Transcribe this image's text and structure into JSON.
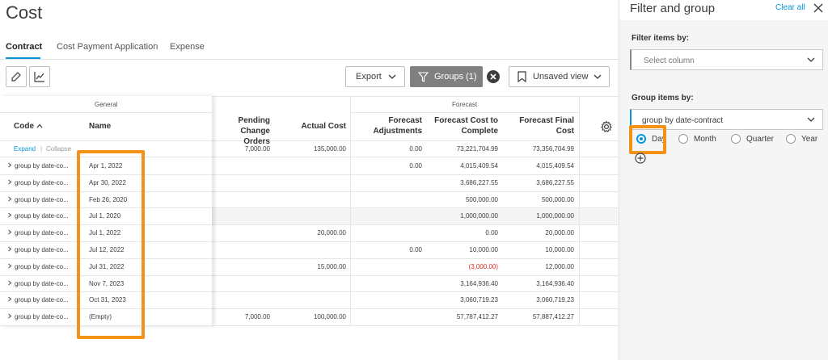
{
  "page": {
    "title": "Cost"
  },
  "tabs": [
    {
      "label": "Contract",
      "active": true
    },
    {
      "label": "Cost Payment Application",
      "active": false
    },
    {
      "label": "Expense",
      "active": false
    }
  ],
  "toolbar": {
    "edit_icon": "pencil-icon",
    "chart_icon": "line-chart-icon",
    "export_label": "Export",
    "groups_label": "Groups (1)",
    "view_label": "Unsaved view"
  },
  "grid": {
    "group_headers": {
      "general": "General",
      "forecast": "Forecast"
    },
    "columns": {
      "code": "Code",
      "name": "Name",
      "pending_change_orders": [
        "Pending Change",
        "Orders"
      ],
      "actual_cost": "Actual Cost",
      "forecast_adjustments": [
        "Forecast",
        "Adjustments"
      ],
      "forecast_cost_to_complete": [
        "Forecast Cost to",
        "Complete"
      ],
      "forecast_final_cost": [
        "Forecast Final",
        "Cost"
      ]
    },
    "expand_label": "Expand",
    "collapse_label": "Collapse",
    "totals": {
      "pending_change_orders": "7,000.00",
      "actual_cost": "135,000.00",
      "forecast_adjustments": "0.00",
      "forecast_cost_to_complete": "73,221,704.99",
      "forecast_final_cost": "73,356,704.99"
    },
    "rows": [
      {
        "code": "group by date-co...",
        "name": "Apr 1, 2022",
        "pending": "",
        "actual": "",
        "adjust": "0.00",
        "ctc": "4,015,409.54",
        "final": "4,015,409.54"
      },
      {
        "code": "group by date-co...",
        "name": "Apr 30, 2022",
        "pending": "",
        "actual": "",
        "adjust": "",
        "ctc": "3,686,227.55",
        "final": "3,686,227.55"
      },
      {
        "code": "group by date-co...",
        "name": "Feb 26, 2020",
        "pending": "",
        "actual": "",
        "adjust": "",
        "ctc": "500,000.00",
        "final": "500,000.00"
      },
      {
        "code": "group by date-co...",
        "name": "Jul 1, 2020",
        "pending": "",
        "actual": "",
        "adjust": "",
        "ctc": "1,000,000.00",
        "final": "1,000,000.00"
      },
      {
        "code": "group by date-co...",
        "name": "Jul 1, 2022",
        "pending": "",
        "actual": "20,000.00",
        "adjust": "",
        "ctc": "0.00",
        "final": "20,000.00"
      },
      {
        "code": "group by date-co...",
        "name": "Jul 12, 2022",
        "pending": "",
        "actual": "",
        "adjust": "0.00",
        "ctc": "10,000.00",
        "final": "10,000.00"
      },
      {
        "code": "group by date-co...",
        "name": "Jul 31, 2022",
        "pending": "",
        "actual": "15,000.00",
        "adjust": "",
        "ctc": "(3,000.00)",
        "final": "12,000.00"
      },
      {
        "code": "group by date-co...",
        "name": "Nov 7, 2023",
        "pending": "",
        "actual": "",
        "adjust": "",
        "ctc": "3,164,936.40",
        "final": "3,164,936.40"
      },
      {
        "code": "group by date-co...",
        "name": "Oct 31, 2023",
        "pending": "",
        "actual": "",
        "adjust": "",
        "ctc": "3,060,719.23",
        "final": "3,060,719.23"
      },
      {
        "code": "group by date-co...",
        "name": "(Empty)",
        "pending": "7,000.00",
        "actual": "100,000.00",
        "adjust": "",
        "ctc": "57,787,412.27",
        "final": "57,887,412.27"
      }
    ]
  },
  "panel": {
    "title": "Filter and group",
    "clear_all": "Clear all",
    "filter_label": "Filter items by:",
    "filter_placeholder": "Select column",
    "group_label": "Group items by:",
    "group_value": "group by date-contract",
    "options": [
      {
        "label": "Day",
        "checked": true
      },
      {
        "label": "Month",
        "checked": false
      },
      {
        "label": "Quarter",
        "checked": false
      },
      {
        "label": "Year",
        "checked": false
      }
    ]
  },
  "colors": {
    "accent": "#0696d7",
    "highlight": "#f39315",
    "negative": "#d82d20",
    "groups_button": "#808080"
  }
}
